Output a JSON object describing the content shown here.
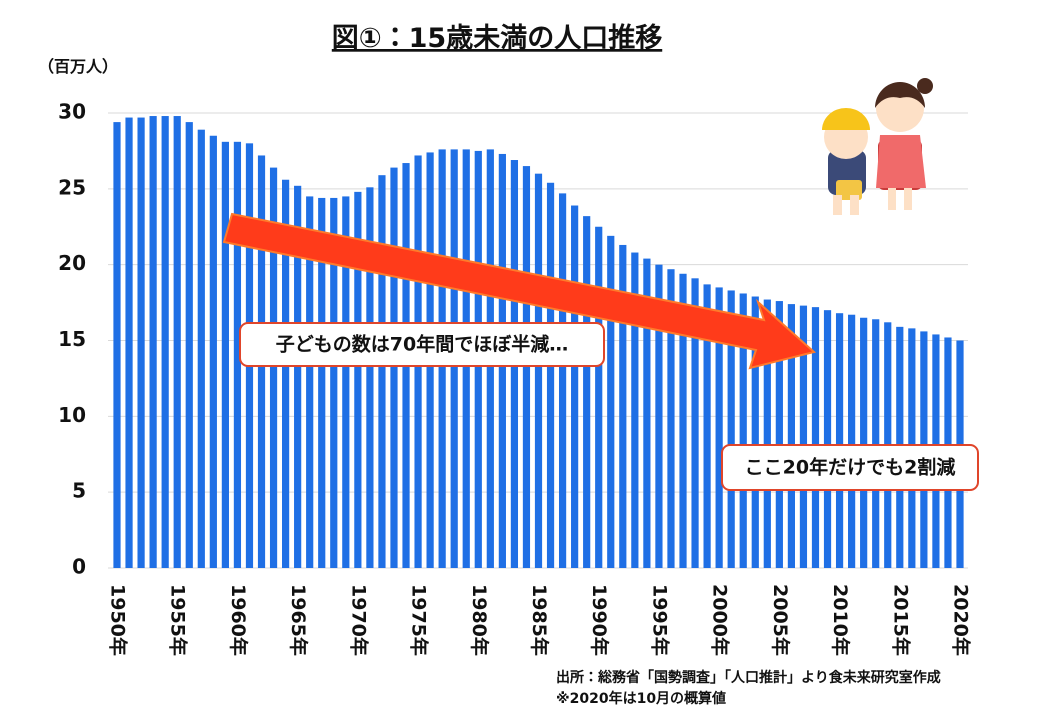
{
  "chart_data": {
    "type": "bar",
    "title": "図①：15歳未満の人口推移",
    "y_axis_label": "（百万人）",
    "categories": [
      "1950年",
      null,
      null,
      null,
      null,
      "1955年",
      null,
      null,
      null,
      null,
      "1960年",
      null,
      null,
      null,
      null,
      "1965年",
      null,
      null,
      null,
      null,
      "1970年",
      null,
      null,
      null,
      null,
      "1975年",
      null,
      null,
      null,
      null,
      "1980年",
      null,
      null,
      null,
      null,
      "1985年",
      null,
      null,
      null,
      null,
      "1990年",
      null,
      null,
      null,
      null,
      "1995年",
      null,
      null,
      null,
      null,
      "2000年",
      null,
      null,
      null,
      null,
      "2005年",
      null,
      null,
      null,
      null,
      "2010年",
      null,
      null,
      null,
      null,
      "2015年",
      null,
      null,
      null,
      null,
      "2020年"
    ],
    "values": [
      29.4,
      29.7,
      29.7,
      29.8,
      29.8,
      29.8,
      29.4,
      28.9,
      28.5,
      28.1,
      28.1,
      28.0,
      27.2,
      26.4,
      25.6,
      25.2,
      24.5,
      24.4,
      24.4,
      24.5,
      24.8,
      25.1,
      25.9,
      26.4,
      26.7,
      27.2,
      27.4,
      27.6,
      27.6,
      27.6,
      27.5,
      27.6,
      27.3,
      26.9,
      26.5,
      26.0,
      25.4,
      24.7,
      23.9,
      23.2,
      22.5,
      21.9,
      21.3,
      20.8,
      20.4,
      20.0,
      19.7,
      19.4,
      19.1,
      18.7,
      18.5,
      18.3,
      18.1,
      17.9,
      17.7,
      17.6,
      17.4,
      17.3,
      17.2,
      17.0,
      16.8,
      16.7,
      16.5,
      16.4,
      16.2,
      15.9,
      15.8,
      15.6,
      15.4,
      15.2,
      15.0
    ],
    "color": "#1f6fe5",
    "ylim": [
      0,
      30
    ],
    "yticks": [
      0,
      5,
      10,
      15,
      20,
      25,
      30
    ],
    "grid": true,
    "annotations": [
      "子どもの数は70年間でほぼ半減…",
      "ここ20年だけでも2割減"
    ],
    "source": [
      "出所：総務省「国勢調査」「人口推計」より食未来研究室作成",
      "※2020年は10月の概算値"
    ]
  }
}
